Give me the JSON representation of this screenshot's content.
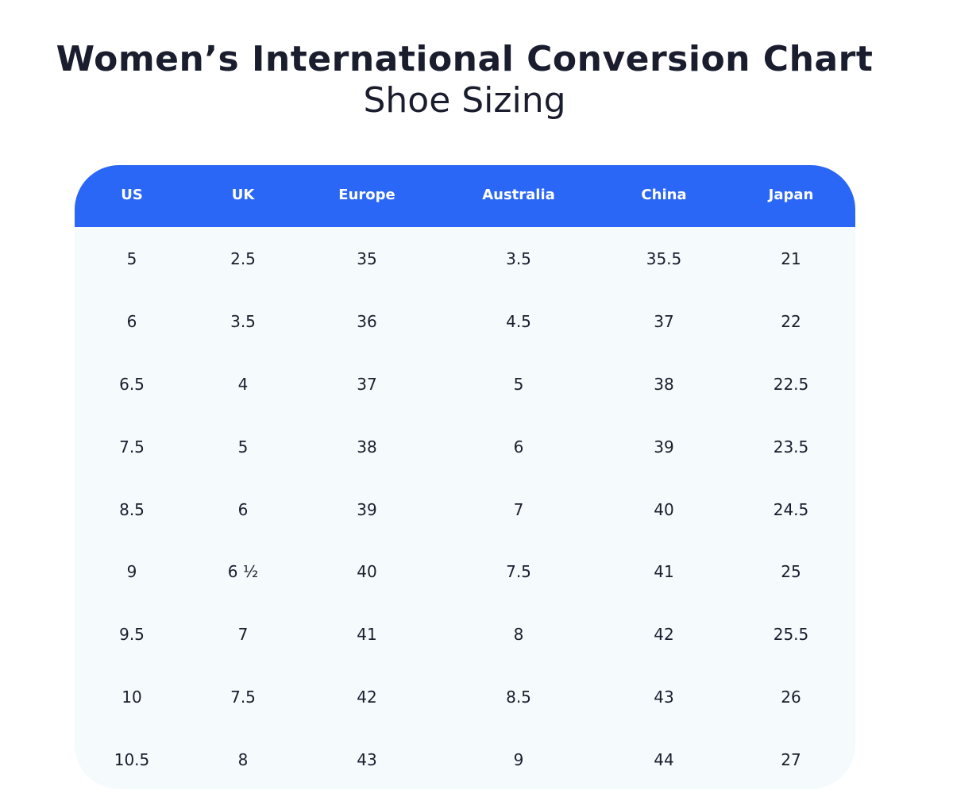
{
  "title": "Women’s International Conversion Chart",
  "subtitle": "Shoe Sizing",
  "table": {
    "columns": [
      "US",
      "UK",
      "Europe",
      "Australia",
      "China",
      "Japan"
    ],
    "rows": [
      [
        "5",
        "2.5",
        "35",
        "3.5",
        "35.5",
        "21"
      ],
      [
        "6",
        "3.5",
        "36",
        "4.5",
        "37",
        "22"
      ],
      [
        "6.5",
        "4",
        "37",
        "5",
        "38",
        "22.5"
      ],
      [
        "7.5",
        "5",
        "38",
        "6",
        "39",
        "23.5"
      ],
      [
        "8.5",
        "6",
        "39",
        "7",
        "40",
        "24.5"
      ],
      [
        "9",
        "6 ½",
        "40",
        "7.5",
        "41",
        "25"
      ],
      [
        "9.5",
        "7",
        "41",
        "8",
        "42",
        "25.5"
      ],
      [
        "10",
        "7.5",
        "42",
        "8.5",
        "43",
        "26"
      ],
      [
        "10.5",
        "8",
        "43",
        "9",
        "44",
        "27"
      ]
    ]
  },
  "colors": {
    "header_bg": "#2b67f6",
    "body_bg": "#f5fbfd",
    "text": "#1a1d2e"
  }
}
